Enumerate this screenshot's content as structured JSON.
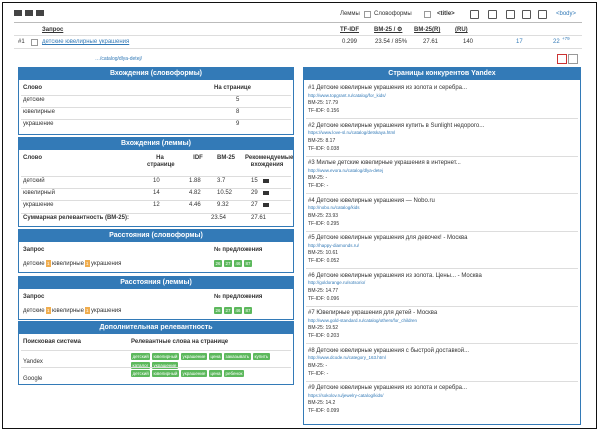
{
  "toolbar": {
    "lemmas": "Леммы",
    "wordforms": "Словоформы",
    "title_tag": "<title>",
    "body_tag": "<body>"
  },
  "results": {
    "headers": [
      "Запрос",
      "TF-IDF",
      "BM-25 / ⚙",
      "BM-25(R)",
      "(RU)"
    ],
    "row": {
      "rank": "#1",
      "query": "детские ювелирные украшения",
      "tfidf": "0.299",
      "bm25": "23.54 / 85%",
      "bm25r": "27.61",
      "freq": "140",
      "links": "17",
      "pos": "22",
      "pos_delta": "+79"
    },
    "url": "…/catalog/dlya-detej/"
  },
  "wordforms": {
    "title": "Вхождения (словоформы)",
    "headers": [
      "Слово",
      "На странице"
    ],
    "rows": [
      [
        "детские",
        "5"
      ],
      [
        "ювелирные",
        "8"
      ],
      [
        "украшение",
        "9"
      ]
    ]
  },
  "lemmas": {
    "title": "Вхождения (леммы)",
    "headers": [
      "Слово",
      "На странице",
      "IDF",
      "BM-25",
      "Рекомендуемые вхождения"
    ],
    "rows": [
      [
        "детский",
        "10",
        "1.88",
        "3.7",
        "15"
      ],
      [
        "ювелирный",
        "14",
        "4.82",
        "10.52",
        "29"
      ],
      [
        "украшение",
        "12",
        "4.46",
        "9.32",
        "27"
      ]
    ],
    "total_label": "Суммарная релевантность (BM-25):",
    "total": "23.54",
    "total_rec": "27.61"
  },
  "dist_wordforms": {
    "title": "Расстояния (словоформы)",
    "headers": [
      "Запрос",
      "№ предложения"
    ],
    "words": [
      "детские",
      "ювелирные",
      "украшения"
    ],
    "gaps": [
      "1",
      "1"
    ],
    "sentences": [
      "26",
      "27",
      "46",
      "87"
    ]
  },
  "dist_lemmas": {
    "title": "Расстояния (леммы)",
    "headers": [
      "Запрос",
      "№ предложения"
    ],
    "words": [
      "детские",
      "ювелирные",
      "украшения"
    ],
    "gaps": [
      "1",
      "1"
    ],
    "sentences": [
      "26",
      "27",
      "46",
      "87"
    ]
  },
  "extra": {
    "title": "Дополнительная релевантность",
    "headers": [
      "Поисковая система",
      "Релевантные слова на странице"
    ],
    "rows": [
      {
        "engine": "Yandex",
        "words": [
          "детский",
          "ювелирный",
          "украшение",
          "цена",
          "заказывать",
          "купить",
          "каталог",
          "украшение"
        ]
      },
      {
        "engine": "Google",
        "words": [
          "детский",
          "ювелирный",
          "украшение",
          "цена",
          "ребенок"
        ]
      }
    ]
  },
  "competitors": {
    "title": "Страницы конкурентов Yandex",
    "items": [
      {
        "title": "#1 Детские ювелирные украшения из золота и серебра...",
        "url": "http://www.topgrant.ru/catalog/for_kids/",
        "bm25": "BM-25: 17.79",
        "tfidf": "TF-IDF: 0.156"
      },
      {
        "title": "#2 Детские ювелирные украшения купить в Sunlight недорого...",
        "url": "https://www.love-sl.ru/catalog/detskaya.html",
        "bm25": "BM-25: 8.17",
        "tfidf": "TF-IDF: 0.038"
      },
      {
        "title": "#3 Милые детские ювелирные украшения в интернет...",
        "url": "http://www.evora.ru/catalog/dlya-detej",
        "bm25": "BM-25: -",
        "tfidf": "TF-IDF: -"
      },
      {
        "title": "#4 Детские ювелирные украшения — Nobo.ru",
        "url": "http://nobo.ru/catalog/kids",
        "bm25": "BM-25: 23.93",
        "tfidf": "TF-IDF: 0.295"
      },
      {
        "title": "#5 Детские ювелирные украшения для девочек! - Москва",
        "url": "http://happy-diamonds.ru/",
        "bm25": "BM-25: 10.61",
        "tfidf": "TF-IDF: 0.052"
      },
      {
        "title": "#6 Детские ювелирные украшения из золота. Цены... - Москва",
        "url": "http://goldorange.ru/sotsorio/",
        "bm25": "BM-25: 14.77",
        "tfidf": "TF-IDF: 0.096"
      },
      {
        "title": "#7 Ювелирные украшения для детей - Москва",
        "url": "http://www.gold-standard.ru/catalog/others/for_children",
        "bm25": "BM-25: 19.52",
        "tfidf": "TF-IDF: 0.203"
      },
      {
        "title": "#8 Детские ювелирные украшения с быстрой доставкой...",
        "url": "http://www.dcode.ru/category_163.html",
        "bm25": "BM-25: -",
        "tfidf": "TF-IDF: -"
      },
      {
        "title": "#9 Детские ювелирные украшения из золота и серебра...",
        "url": "https://sokolov.ru/jewelry-catalog/kids/",
        "bm25": "BM-25: 14.2",
        "tfidf": "TF-IDF: 0.099"
      }
    ]
  }
}
